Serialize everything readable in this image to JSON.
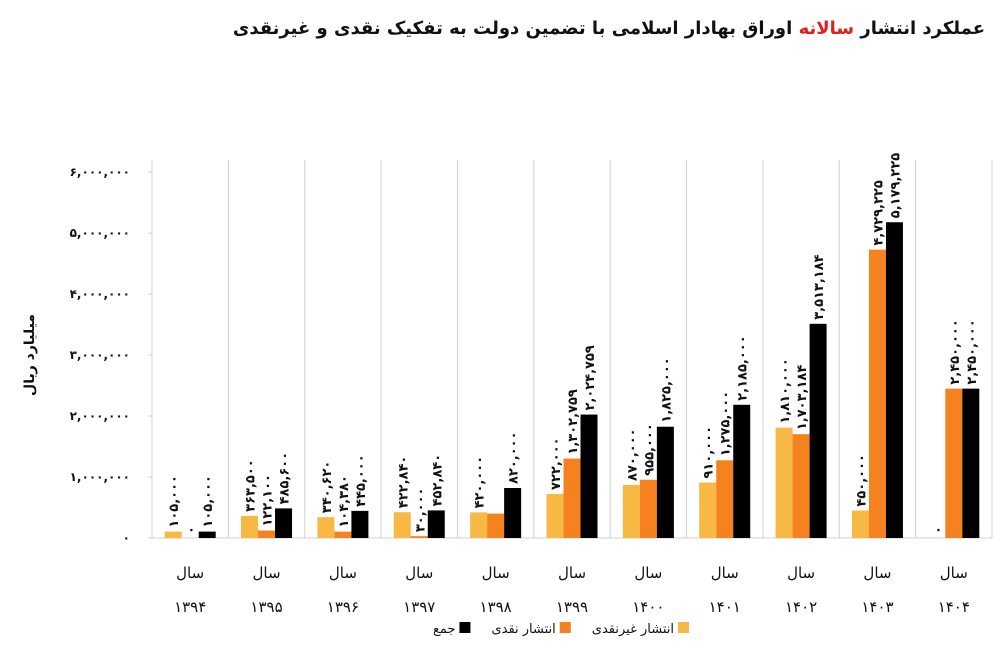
{
  "chart_data": {
    "type": "bar",
    "title_before": "عملکرد انتشار",
    "title_highlight": "سالانه",
    "title_after": "اوراق بهادار اسلامی با تضمین دولت به تفکیک نقدی و غیرنقدی",
    "title_highlight_color": "#e0201b",
    "y_label": "میلیارد ریال",
    "category_prefix": "سال",
    "categories": [
      "۱۳۹۴",
      "۱۳۹۵",
      "۱۳۹۶",
      "۱۳۹۷",
      "۱۳۹۸",
      "۱۳۹۹",
      "۱۴۰۰",
      "۱۴۰۱",
      "۱۴۰۲",
      "۱۴۰۳",
      "۱۴۰۴"
    ],
    "series": [
      {
        "name": "انتشار غیرنقدی",
        "color": "#f7b844",
        "values": [
          105000,
          363500,
          340620,
          422840,
          420000,
          722000,
          870000,
          910000,
          1810000,
          450000,
          0
        ],
        "value_labels": [
          "۱۰۵,۰۰۰",
          "۳۶۳,۵۰۰",
          "۳۴۰,۶۲۰",
          "۴۲۲,۸۴۰",
          "۴۲۰,۰۰۰",
          "۷۲۲,۰۰۰",
          "۸۷۰,۰۰۰",
          "۹۱۰,۰۰۰",
          "۱,۸۱۰,۰۰۰",
          "۴۵۰,۰۰۰",
          "۰"
        ]
      },
      {
        "name": "انتشار نقدی",
        "color": "#f5821f",
        "values": [
          0,
          122100,
          104380,
          30000,
          400000,
          1302759,
          955000,
          1275000,
          1703184,
          4729225,
          2450000
        ],
        "value_labels": [
          "۰",
          "۱۲۲,۱۰۰",
          "۱۰۴,۳۸۰",
          "۳۰,۰۰۰",
          null,
          "۱,۳۰۲,۷۵۹",
          "۹۵۵,۰۰۰",
          "۱,۲۷۵,۰۰۰",
          "۱,۷۰۳,۱۸۴",
          "۴,۷۲۹,۲۲۵",
          "۲,۴۵۰,۰۰۰"
        ]
      },
      {
        "name": "جمع",
        "color": "#000000",
        "values": [
          105000,
          485600,
          445000,
          452840,
          820000,
          2024759,
          1825000,
          2185000,
          3513184,
          5179225,
          2450000
        ],
        "value_labels": [
          "۱۰۵,۰۰۰",
          "۴۸۵,۶۰۰",
          "۴۴۵,۰۰۰",
          "۴۵۲,۸۴۰",
          "۸۲۰,۰۰۰",
          "۲,۰۲۴,۷۵۹",
          "۱,۸۲۵,۰۰۰",
          "۲,۱۸۵,۰۰۰",
          "۳,۵۱۳,۱۸۴",
          "۵,۱۷۹,۲۲۵",
          "۲,۴۵۰,۰۰۰"
        ]
      }
    ],
    "ylim": [
      0,
      6200000
    ],
    "yticks": [
      {
        "value": 0,
        "label": "۰"
      },
      {
        "value": 1000000,
        "label": "۱,۰۰۰,۰۰۰"
      },
      {
        "value": 2000000,
        "label": "۲,۰۰۰,۰۰۰"
      },
      {
        "value": 3000000,
        "label": "۳,۰۰۰,۰۰۰"
      },
      {
        "value": 4000000,
        "label": "۴,۰۰۰,۰۰۰"
      },
      {
        "value": 5000000,
        "label": "۵,۰۰۰,۰۰۰"
      },
      {
        "value": 6000000,
        "label": "۶,۰۰۰,۰۰۰"
      }
    ],
    "legend": "bottom"
  }
}
